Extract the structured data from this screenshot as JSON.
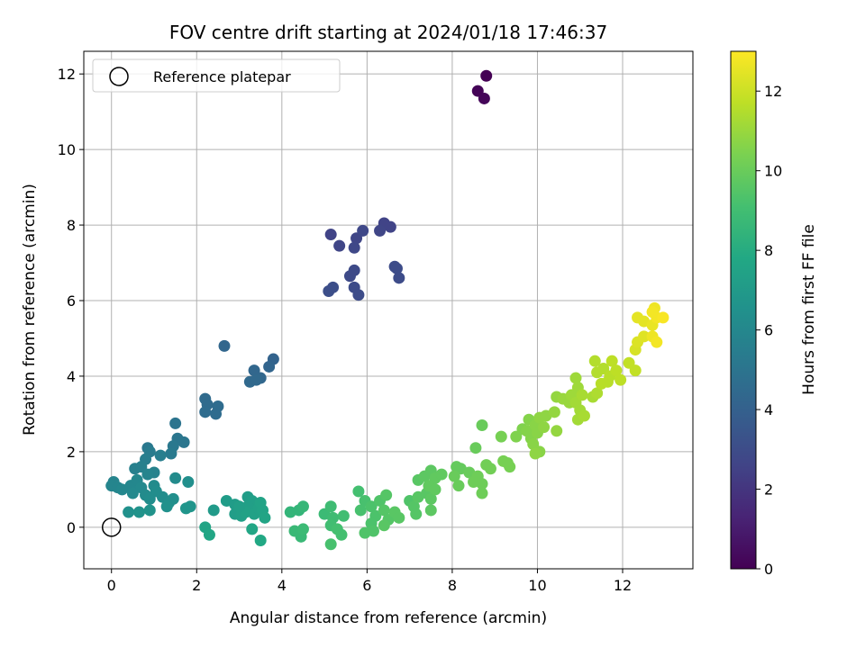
{
  "chart_data": {
    "type": "scatter",
    "title": "FOV centre drift starting at 2024/01/18 17:46:37",
    "xlabel": "Angular distance from reference (arcmin)",
    "ylabel": "Rotation from reference (arcmin)",
    "xlim": [
      -0.65,
      13.65
    ],
    "ylim": [
      -1.1,
      12.6
    ],
    "xticks": [
      0,
      2,
      4,
      6,
      8,
      10,
      12
    ],
    "yticks": [
      0,
      2,
      4,
      6,
      8,
      10,
      12
    ],
    "grid": true,
    "colormap": "viridis",
    "colorbar": {
      "label": "Hours from first FF file",
      "range": [
        0,
        13
      ],
      "ticks": [
        0,
        2,
        4,
        6,
        8,
        10,
        12
      ]
    },
    "legend": {
      "location": "upper-left",
      "entries": [
        {
          "label": "Reference platepar",
          "marker": "open-circle"
        }
      ]
    },
    "reference_point": {
      "x": 0,
      "y": 0,
      "label": "Reference platepar"
    },
    "points": [
      {
        "x": 8.8,
        "y": 11.95,
        "t": 0.0
      },
      {
        "x": 8.6,
        "y": 11.55,
        "t": 0.1
      },
      {
        "x": 8.75,
        "y": 11.35,
        "t": 0.2
      },
      {
        "x": 5.15,
        "y": 7.75,
        "t": 2.6
      },
      {
        "x": 5.35,
        "y": 7.45,
        "t": 2.7
      },
      {
        "x": 5.75,
        "y": 7.65,
        "t": 2.7
      },
      {
        "x": 5.9,
        "y": 7.85,
        "t": 2.8
      },
      {
        "x": 5.7,
        "y": 7.4,
        "t": 2.8
      },
      {
        "x": 6.4,
        "y": 8.05,
        "t": 2.6
      },
      {
        "x": 6.3,
        "y": 7.85,
        "t": 2.7
      },
      {
        "x": 6.55,
        "y": 7.95,
        "t": 2.6
      },
      {
        "x": 5.6,
        "y": 6.65,
        "t": 2.9
      },
      {
        "x": 5.7,
        "y": 6.8,
        "t": 2.9
      },
      {
        "x": 5.7,
        "y": 6.35,
        "t": 3.0
      },
      {
        "x": 5.8,
        "y": 6.15,
        "t": 3.0
      },
      {
        "x": 5.1,
        "y": 6.25,
        "t": 3.1
      },
      {
        "x": 5.2,
        "y": 6.35,
        "t": 3.1
      },
      {
        "x": 6.65,
        "y": 6.9,
        "t": 3.0
      },
      {
        "x": 6.7,
        "y": 6.85,
        "t": 3.0
      },
      {
        "x": 6.75,
        "y": 6.6,
        "t": 3.0
      },
      {
        "x": 2.65,
        "y": 4.8,
        "t": 4.3
      },
      {
        "x": 3.8,
        "y": 4.45,
        "t": 4.1
      },
      {
        "x": 3.7,
        "y": 4.25,
        "t": 4.2
      },
      {
        "x": 3.35,
        "y": 4.15,
        "t": 4.3
      },
      {
        "x": 3.5,
        "y": 3.95,
        "t": 4.3
      },
      {
        "x": 3.25,
        "y": 3.85,
        "t": 4.4
      },
      {
        "x": 3.4,
        "y": 3.9,
        "t": 4.4
      },
      {
        "x": 2.2,
        "y": 3.4,
        "t": 4.5
      },
      {
        "x": 2.25,
        "y": 3.25,
        "t": 4.5
      },
      {
        "x": 2.5,
        "y": 3.2,
        "t": 4.6
      },
      {
        "x": 2.2,
        "y": 3.05,
        "t": 4.6
      },
      {
        "x": 2.45,
        "y": 3.0,
        "t": 4.6
      },
      {
        "x": 1.5,
        "y": 2.75,
        "t": 5.0
      },
      {
        "x": 1.55,
        "y": 2.35,
        "t": 5.1
      },
      {
        "x": 1.7,
        "y": 2.25,
        "t": 5.1
      },
      {
        "x": 1.45,
        "y": 2.15,
        "t": 5.2
      },
      {
        "x": 1.4,
        "y": 1.95,
        "t": 5.3
      },
      {
        "x": 0.85,
        "y": 2.1,
        "t": 5.2
      },
      {
        "x": 0.9,
        "y": 2.0,
        "t": 5.4
      },
      {
        "x": 1.15,
        "y": 1.9,
        "t": 5.5
      },
      {
        "x": 0.8,
        "y": 1.8,
        "t": 5.5
      },
      {
        "x": 0.55,
        "y": 1.55,
        "t": 5.6
      },
      {
        "x": 0.7,
        "y": 1.6,
        "t": 5.6
      },
      {
        "x": 1.0,
        "y": 1.45,
        "t": 5.7
      },
      {
        "x": 0.85,
        "y": 1.4,
        "t": 5.8
      },
      {
        "x": 0.05,
        "y": 1.2,
        "t": 5.8
      },
      {
        "x": 0.0,
        "y": 1.1,
        "t": 5.9
      },
      {
        "x": 0.15,
        "y": 1.05,
        "t": 5.9
      },
      {
        "x": 0.25,
        "y": 1.0,
        "t": 6.0
      },
      {
        "x": 0.45,
        "y": 1.1,
        "t": 6.0
      },
      {
        "x": 0.6,
        "y": 1.25,
        "t": 6.0
      },
      {
        "x": 0.7,
        "y": 1.05,
        "t": 6.1
      },
      {
        "x": 0.5,
        "y": 0.9,
        "t": 6.1
      },
      {
        "x": 0.8,
        "y": 0.85,
        "t": 6.2
      },
      {
        "x": 1.0,
        "y": 1.1,
        "t": 6.2
      },
      {
        "x": 1.05,
        "y": 0.95,
        "t": 6.3
      },
      {
        "x": 1.2,
        "y": 0.8,
        "t": 6.3
      },
      {
        "x": 1.45,
        "y": 0.75,
        "t": 6.4
      },
      {
        "x": 1.35,
        "y": 0.65,
        "t": 6.4
      },
      {
        "x": 1.3,
        "y": 0.55,
        "t": 6.5
      },
      {
        "x": 0.9,
        "y": 0.75,
        "t": 6.3
      },
      {
        "x": 0.4,
        "y": 0.4,
        "t": 6.5
      },
      {
        "x": 0.65,
        "y": 0.4,
        "t": 6.6
      },
      {
        "x": 0.9,
        "y": 0.45,
        "t": 6.6
      },
      {
        "x": 1.5,
        "y": 1.3,
        "t": 6.2
      },
      {
        "x": 1.8,
        "y": 1.2,
        "t": 6.4
      },
      {
        "x": 1.75,
        "y": 0.5,
        "t": 6.7
      },
      {
        "x": 1.85,
        "y": 0.55,
        "t": 6.7
      },
      {
        "x": 2.4,
        "y": 0.45,
        "t": 7.0
      },
      {
        "x": 2.7,
        "y": 0.7,
        "t": 7.1
      },
      {
        "x": 2.9,
        "y": 0.6,
        "t": 7.1
      },
      {
        "x": 3.0,
        "y": 0.45,
        "t": 7.2
      },
      {
        "x": 2.9,
        "y": 0.35,
        "t": 7.2
      },
      {
        "x": 3.05,
        "y": 0.3,
        "t": 7.3
      },
      {
        "x": 3.2,
        "y": 0.8,
        "t": 7.2
      },
      {
        "x": 3.3,
        "y": 0.7,
        "t": 7.3
      },
      {
        "x": 3.2,
        "y": 0.55,
        "t": 7.3
      },
      {
        "x": 3.15,
        "y": 0.4,
        "t": 7.4
      },
      {
        "x": 3.35,
        "y": 0.35,
        "t": 7.4
      },
      {
        "x": 3.45,
        "y": 0.5,
        "t": 7.4
      },
      {
        "x": 3.5,
        "y": 0.65,
        "t": 7.5
      },
      {
        "x": 3.55,
        "y": 0.45,
        "t": 7.5
      },
      {
        "x": 3.6,
        "y": 0.25,
        "t": 7.6
      },
      {
        "x": 3.0,
        "y": 0.55,
        "t": 7.3
      },
      {
        "x": 2.2,
        "y": 0.0,
        "t": 7.6
      },
      {
        "x": 2.3,
        "y": -0.2,
        "t": 7.7
      },
      {
        "x": 3.3,
        "y": -0.05,
        "t": 7.7
      },
      {
        "x": 3.5,
        "y": -0.35,
        "t": 7.8
      },
      {
        "x": 4.2,
        "y": 0.4,
        "t": 8.5
      },
      {
        "x": 4.4,
        "y": 0.45,
        "t": 8.5
      },
      {
        "x": 4.5,
        "y": 0.55,
        "t": 8.6
      },
      {
        "x": 4.3,
        "y": -0.1,
        "t": 8.7
      },
      {
        "x": 4.45,
        "y": -0.25,
        "t": 8.7
      },
      {
        "x": 4.5,
        "y": -0.05,
        "t": 8.8
      },
      {
        "x": 5.0,
        "y": 0.35,
        "t": 8.8
      },
      {
        "x": 5.15,
        "y": 0.55,
        "t": 8.9
      },
      {
        "x": 5.2,
        "y": 0.25,
        "t": 8.9
      },
      {
        "x": 5.45,
        "y": 0.3,
        "t": 9.0
      },
      {
        "x": 5.15,
        "y": 0.05,
        "t": 9.0
      },
      {
        "x": 5.3,
        "y": -0.05,
        "t": 9.1
      },
      {
        "x": 5.4,
        "y": -0.2,
        "t": 9.1
      },
      {
        "x": 5.15,
        "y": -0.45,
        "t": 9.2
      },
      {
        "x": 5.8,
        "y": 0.95,
        "t": 9.1
      },
      {
        "x": 5.95,
        "y": 0.7,
        "t": 9.2
      },
      {
        "x": 5.85,
        "y": 0.45,
        "t": 9.2
      },
      {
        "x": 6.1,
        "y": 0.55,
        "t": 9.3
      },
      {
        "x": 6.2,
        "y": 0.3,
        "t": 9.3
      },
      {
        "x": 6.1,
        "y": 0.1,
        "t": 9.3
      },
      {
        "x": 5.95,
        "y": -0.15,
        "t": 9.4
      },
      {
        "x": 6.15,
        "y": -0.1,
        "t": 9.4
      },
      {
        "x": 6.3,
        "y": 0.7,
        "t": 9.4
      },
      {
        "x": 6.45,
        "y": 0.85,
        "t": 9.5
      },
      {
        "x": 6.4,
        "y": 0.45,
        "t": 9.5
      },
      {
        "x": 6.5,
        "y": 0.2,
        "t": 9.5
      },
      {
        "x": 6.65,
        "y": 0.4,
        "t": 9.6
      },
      {
        "x": 6.75,
        "y": 0.25,
        "t": 9.6
      },
      {
        "x": 6.4,
        "y": 0.05,
        "t": 9.6
      },
      {
        "x": 7.0,
        "y": 0.7,
        "t": 9.4
      },
      {
        "x": 7.1,
        "y": 0.55,
        "t": 9.5
      },
      {
        "x": 7.15,
        "y": 0.35,
        "t": 9.5
      },
      {
        "x": 7.2,
        "y": 0.8,
        "t": 9.6
      },
      {
        "x": 7.4,
        "y": 0.9,
        "t": 9.6
      },
      {
        "x": 7.5,
        "y": 0.75,
        "t": 9.7
      },
      {
        "x": 7.5,
        "y": 0.45,
        "t": 9.7
      },
      {
        "x": 7.2,
        "y": 1.25,
        "t": 9.6
      },
      {
        "x": 7.35,
        "y": 1.35,
        "t": 9.7
      },
      {
        "x": 7.5,
        "y": 1.5,
        "t": 9.7
      },
      {
        "x": 7.6,
        "y": 1.3,
        "t": 9.8
      },
      {
        "x": 7.75,
        "y": 1.4,
        "t": 9.8
      },
      {
        "x": 7.45,
        "y": 1.1,
        "t": 9.8
      },
      {
        "x": 7.6,
        "y": 1.0,
        "t": 9.8
      },
      {
        "x": 8.1,
        "y": 1.6,
        "t": 9.9
      },
      {
        "x": 8.2,
        "y": 1.55,
        "t": 9.9
      },
      {
        "x": 8.05,
        "y": 1.35,
        "t": 10.0
      },
      {
        "x": 8.15,
        "y": 1.1,
        "t": 10.0
      },
      {
        "x": 8.4,
        "y": 1.45,
        "t": 10.0
      },
      {
        "x": 8.5,
        "y": 1.2,
        "t": 10.1
      },
      {
        "x": 8.6,
        "y": 1.35,
        "t": 10.1
      },
      {
        "x": 8.7,
        "y": 1.15,
        "t": 10.1
      },
      {
        "x": 8.7,
        "y": 0.9,
        "t": 10.1
      },
      {
        "x": 8.55,
        "y": 2.1,
        "t": 10.0
      },
      {
        "x": 8.7,
        "y": 2.7,
        "t": 10.0
      },
      {
        "x": 8.8,
        "y": 1.65,
        "t": 10.2
      },
      {
        "x": 8.9,
        "y": 1.55,
        "t": 10.2
      },
      {
        "x": 9.15,
        "y": 2.4,
        "t": 10.3
      },
      {
        "x": 9.2,
        "y": 1.75,
        "t": 10.3
      },
      {
        "x": 9.35,
        "y": 1.6,
        "t": 10.3
      },
      {
        "x": 9.3,
        "y": 1.7,
        "t": 10.3
      },
      {
        "x": 9.5,
        "y": 2.4,
        "t": 10.5
      },
      {
        "x": 9.65,
        "y": 2.6,
        "t": 10.5
      },
      {
        "x": 9.8,
        "y": 2.85,
        "t": 10.6
      },
      {
        "x": 9.75,
        "y": 2.55,
        "t": 10.6
      },
      {
        "x": 9.85,
        "y": 2.35,
        "t": 10.6
      },
      {
        "x": 9.95,
        "y": 2.7,
        "t": 10.7
      },
      {
        "x": 10.0,
        "y": 2.5,
        "t": 10.7
      },
      {
        "x": 9.9,
        "y": 2.2,
        "t": 10.7
      },
      {
        "x": 10.05,
        "y": 2.0,
        "t": 10.7
      },
      {
        "x": 9.95,
        "y": 1.95,
        "t": 10.8
      },
      {
        "x": 10.05,
        "y": 2.9,
        "t": 10.8
      },
      {
        "x": 10.2,
        "y": 2.95,
        "t": 10.8
      },
      {
        "x": 10.15,
        "y": 2.65,
        "t": 10.8
      },
      {
        "x": 10.45,
        "y": 3.45,
        "t": 10.9
      },
      {
        "x": 10.4,
        "y": 3.05,
        "t": 10.9
      },
      {
        "x": 10.45,
        "y": 2.55,
        "t": 10.9
      },
      {
        "x": 10.6,
        "y": 3.4,
        "t": 11.0
      },
      {
        "x": 10.75,
        "y": 3.3,
        "t": 11.0
      },
      {
        "x": 10.8,
        "y": 3.5,
        "t": 11.1
      },
      {
        "x": 10.9,
        "y": 3.95,
        "t": 11.1
      },
      {
        "x": 10.95,
        "y": 3.7,
        "t": 11.1
      },
      {
        "x": 10.9,
        "y": 3.3,
        "t": 11.2
      },
      {
        "x": 11.0,
        "y": 3.1,
        "t": 11.2
      },
      {
        "x": 10.95,
        "y": 2.85,
        "t": 11.2
      },
      {
        "x": 11.1,
        "y": 2.95,
        "t": 11.3
      },
      {
        "x": 11.05,
        "y": 3.5,
        "t": 11.3
      },
      {
        "x": 11.3,
        "y": 3.45,
        "t": 11.3
      },
      {
        "x": 11.4,
        "y": 3.55,
        "t": 11.4
      },
      {
        "x": 11.35,
        "y": 4.4,
        "t": 11.5
      },
      {
        "x": 11.4,
        "y": 4.1,
        "t": 11.5
      },
      {
        "x": 11.55,
        "y": 4.2,
        "t": 11.5
      },
      {
        "x": 11.5,
        "y": 3.8,
        "t": 11.6
      },
      {
        "x": 11.7,
        "y": 4.0,
        "t": 11.6
      },
      {
        "x": 11.65,
        "y": 3.85,
        "t": 11.6
      },
      {
        "x": 11.75,
        "y": 4.4,
        "t": 11.7
      },
      {
        "x": 11.85,
        "y": 4.15,
        "t": 11.7
      },
      {
        "x": 11.95,
        "y": 3.9,
        "t": 11.7
      },
      {
        "x": 12.15,
        "y": 4.35,
        "t": 11.8
      },
      {
        "x": 12.3,
        "y": 4.15,
        "t": 11.8
      },
      {
        "x": 12.3,
        "y": 4.7,
        "t": 12.2
      },
      {
        "x": 12.35,
        "y": 4.9,
        "t": 12.3
      },
      {
        "x": 12.5,
        "y": 5.05,
        "t": 12.4
      },
      {
        "x": 12.35,
        "y": 5.55,
        "t": 12.5
      },
      {
        "x": 12.5,
        "y": 5.45,
        "t": 12.5
      },
      {
        "x": 12.7,
        "y": 5.35,
        "t": 12.6
      },
      {
        "x": 12.75,
        "y": 5.8,
        "t": 12.7
      },
      {
        "x": 12.8,
        "y": 5.55,
        "t": 12.8
      },
      {
        "x": 12.7,
        "y": 5.7,
        "t": 12.8
      },
      {
        "x": 12.7,
        "y": 5.05,
        "t": 12.7
      },
      {
        "x": 12.8,
        "y": 4.9,
        "t": 12.8
      },
      {
        "x": 12.95,
        "y": 5.55,
        "t": 12.9
      }
    ]
  }
}
